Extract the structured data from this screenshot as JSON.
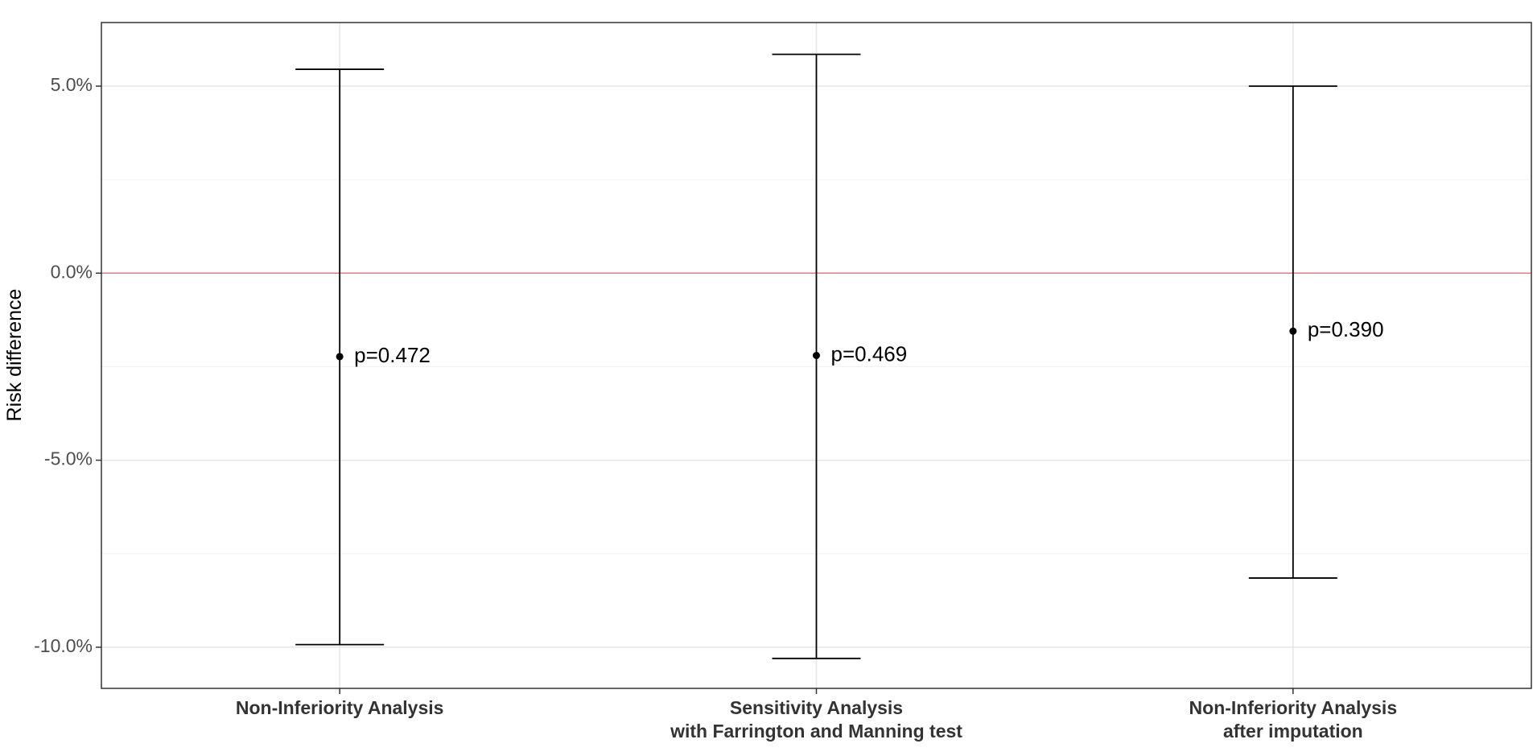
{
  "chart_data": {
    "type": "errorbar",
    "ylabel": "Risk difference",
    "ylim": [
      -0.111,
      0.067
    ],
    "yticks": [
      {
        "value": 0.05,
        "label": "5.0%"
      },
      {
        "value": 0.0,
        "label": "0.0%"
      },
      {
        "value": -0.05,
        "label": "-5.0%"
      },
      {
        "value": -0.1,
        "label": "-10.0%"
      }
    ],
    "minor_yticks": [
      0.025,
      -0.025,
      -0.075
    ],
    "reference_line": {
      "value": 0.0,
      "color": "#F8766D"
    },
    "grid": true,
    "points": [
      {
        "category_lines": [
          "Non-Inferiority Analysis"
        ],
        "estimate": -0.0223,
        "lower": -0.0993,
        "upper": 0.0545,
        "annotation": "p=0.472"
      },
      {
        "category_lines": [
          "Sensitivity Analysis",
          "with Farrington and Manning test"
        ],
        "estimate": -0.022,
        "lower": -0.103,
        "upper": 0.0585,
        "annotation": "p=0.469"
      },
      {
        "category_lines": [
          "Non-Inferiority Analysis",
          "after imputation"
        ],
        "estimate": -0.0155,
        "lower": -0.0815,
        "upper": 0.05,
        "annotation": "p=0.390"
      }
    ]
  }
}
